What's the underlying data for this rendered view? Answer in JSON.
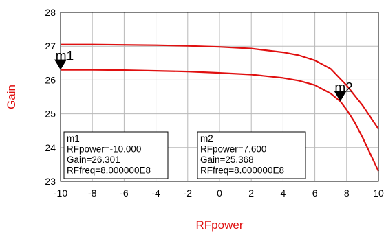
{
  "chart_data": {
    "type": "line",
    "xlabel": "RFpower",
    "ylabel": "Gain",
    "xlim": [
      -10,
      10
    ],
    "ylim": [
      23,
      28
    ],
    "xticks": [
      -10,
      -8,
      -6,
      -4,
      -2,
      0,
      2,
      4,
      6,
      8,
      10
    ],
    "yticks": [
      23,
      24,
      25,
      26,
      27,
      28
    ],
    "grid": true,
    "series": [
      {
        "x": [
          -10,
          -8,
          -6,
          -4,
          -2,
          0,
          2,
          4,
          5,
          6,
          7,
          8,
          9,
          10
        ],
        "values": [
          27.05,
          27.05,
          27.04,
          27.03,
          27.01,
          26.98,
          26.93,
          26.82,
          26.73,
          26.58,
          26.33,
          25.84,
          25.25,
          24.55
        ]
      },
      {
        "x": [
          -10,
          -8,
          -6,
          -4,
          -2,
          0,
          2,
          4,
          5,
          6,
          7,
          7.6,
          8,
          8.5,
          9,
          9.5,
          10
        ],
        "values": [
          26.301,
          26.3,
          26.29,
          26.27,
          26.25,
          26.21,
          26.16,
          26.06,
          25.98,
          25.85,
          25.6,
          25.368,
          25.12,
          24.75,
          24.3,
          23.8,
          23.3
        ]
      }
    ],
    "markers": [
      {
        "name": "m1",
        "x": -10.0,
        "y": 26.301,
        "series": 1,
        "lines": [
          "m1",
          "RFpower=-10.000",
          "Gain=26.301",
          "RFfreq=8.000000E8"
        ]
      },
      {
        "name": "m2",
        "x": 7.6,
        "y": 25.368,
        "series": 1,
        "lines": [
          "m2",
          "RFpower=7.600",
          "Gain=25.368",
          "RFfreq=8.000000E8"
        ]
      }
    ],
    "colors": {
      "line": "#e01010",
      "axis_title": "#e01010",
      "grid": "#b8b8b8",
      "frame": "#000000"
    }
  }
}
